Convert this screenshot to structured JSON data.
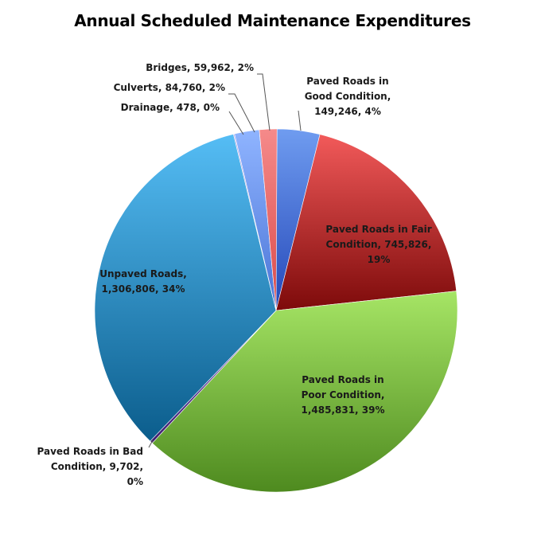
{
  "chart_data": {
    "type": "pie",
    "title": "Annual Scheduled Maintenance Expenditures",
    "slices": [
      {
        "name": "Paved Roads in Good Condition",
        "value": 149246,
        "percent": 4,
        "label_lines": [
          "Paved Roads in",
          "Good Condition,",
          "149,246, 4%"
        ],
        "color_light": "#6f9cf0",
        "color_dark": "#2447b8"
      },
      {
        "name": "Paved Roads in Fair Condition",
        "value": 745826,
        "percent": 19,
        "label_lines": [
          "Paved Roads in Fair",
          "Condition, 745,826,",
          "19%"
        ],
        "color_light": "#f25a5a",
        "color_dark": "#7d0a0a"
      },
      {
        "name": "Paved Roads in Poor Condition",
        "value": 1485831,
        "percent": 39,
        "label_lines": [
          "Paved Roads in",
          "Poor Condition,",
          "1,485,831, 39%"
        ],
        "color_light": "#a6e565",
        "color_dark": "#4e8a1f"
      },
      {
        "name": "Paved Roads in Bad Condition",
        "value": 9702,
        "percent": 0,
        "label_lines": [
          "Paved Roads in Bad",
          "Condition, 9,702,",
          "0%"
        ],
        "color_light": "#8a5fc4",
        "color_dark": "#3e1f70"
      },
      {
        "name": "Unpaved Roads",
        "value": 1306806,
        "percent": 34,
        "label_lines": [
          "Unpaved Roads,",
          "1,306,806, 34%"
        ],
        "color_light": "#55bdf5",
        "color_dark": "#0b5d8c"
      },
      {
        "name": "Drainage",
        "value": 478,
        "percent": 0,
        "label_lines": [
          "Drainage, 478, 0%"
        ],
        "color_light": "#b3a3e8",
        "color_dark": "#6a57b5"
      },
      {
        "name": "Culverts",
        "value": 84760,
        "percent": 2,
        "label_lines": [
          "Culverts, 84,760, 2%"
        ],
        "color_light": "#8fb4ff",
        "color_dark": "#4a74d6"
      },
      {
        "name": "Bridges",
        "value": 59962,
        "percent": 2,
        "label_lines": [
          "Bridges, 59,962, 2%"
        ],
        "color_light": "#f58a8a",
        "color_dark": "#d94a4a"
      }
    ]
  }
}
